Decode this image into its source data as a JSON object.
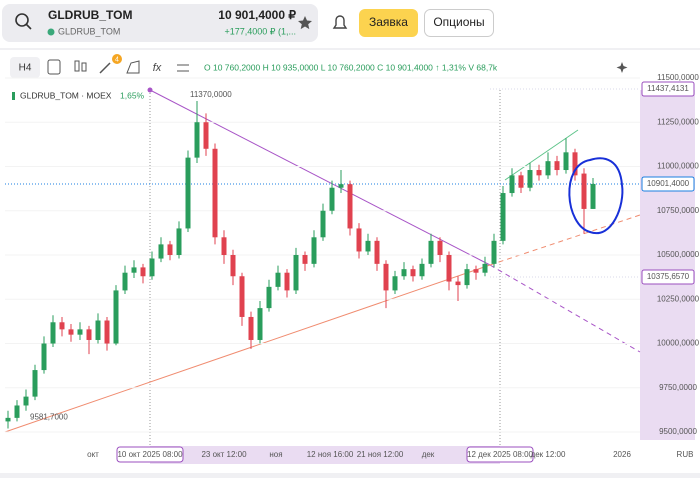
{
  "header": {
    "symbol": "GLDRUB_TOM",
    "sub_symbol": "GLDRUB_TOM",
    "price": "10 901,4000 ₽",
    "change": "+177,4000 ₽ (1,...",
    "order_button": "Заявка",
    "options_button": "Опционы"
  },
  "toolbar": {
    "interval": "H4",
    "badge": "4",
    "ohlc": "O 10 760,2000 H 10 935,0000 L 10 760,2000 C 10 901,4000 ↑ 1,31% V 68,7k"
  },
  "chart_data": {
    "type": "candlestick",
    "legend": "GLDRUB_TOM · MOEX",
    "change": "1,65%",
    "ohlc": [
      [
        9560,
        9620,
        9520,
        9580
      ],
      [
        9580,
        9680,
        9560,
        9650
      ],
      [
        9650,
        9740,
        9620,
        9700
      ],
      [
        9700,
        9880,
        9680,
        9850
      ],
      [
        9850,
        10040,
        9830,
        10000
      ],
      [
        10000,
        10160,
        9980,
        10120
      ],
      [
        10120,
        10150,
        10040,
        10080
      ],
      [
        10080,
        10110,
        10010,
        10050
      ],
      [
        10050,
        10120,
        10020,
        10080
      ],
      [
        10080,
        10100,
        9940,
        10020
      ],
      [
        10020,
        10170,
        10000,
        10130
      ],
      [
        10130,
        10150,
        9960,
        10000
      ],
      [
        10000,
        10330,
        9990,
        10300
      ],
      [
        10300,
        10440,
        10280,
        10400
      ],
      [
        10400,
        10470,
        10370,
        10430
      ],
      [
        10430,
        10450,
        10340,
        10380
      ],
      [
        10380,
        10520,
        10360,
        10480
      ],
      [
        10480,
        10600,
        10460,
        10560
      ],
      [
        10560,
        10580,
        10470,
        10500
      ],
      [
        10500,
        10690,
        10480,
        10650
      ],
      [
        10650,
        11090,
        10630,
        11050
      ],
      [
        11050,
        11370,
        11020,
        11250
      ],
      [
        11250,
        11300,
        11060,
        11100
      ],
      [
        11100,
        11130,
        10560,
        10600
      ],
      [
        10600,
        10640,
        10450,
        10500
      ],
      [
        10500,
        10530,
        10330,
        10380
      ],
      [
        10380,
        10400,
        10100,
        10150
      ],
      [
        10150,
        10180,
        9970,
        10020
      ],
      [
        10020,
        10240,
        10000,
        10200
      ],
      [
        10200,
        10360,
        10180,
        10320
      ],
      [
        10320,
        10440,
        10300,
        10400
      ],
      [
        10400,
        10420,
        10260,
        10300
      ],
      [
        10300,
        10540,
        10280,
        10500
      ],
      [
        10500,
        10520,
        10410,
        10450
      ],
      [
        10450,
        10640,
        10430,
        10600
      ],
      [
        10600,
        10790,
        10580,
        10750
      ],
      [
        10750,
        10920,
        10730,
        10880
      ],
      [
        10880,
        10980,
        10850,
        10900
      ],
      [
        10900,
        10920,
        10610,
        10650
      ],
      [
        10650,
        10680,
        10480,
        10520
      ],
      [
        10520,
        10620,
        10500,
        10580
      ],
      [
        10580,
        10600,
        10410,
        10450
      ],
      [
        10450,
        10470,
        10200,
        10300
      ],
      [
        10300,
        10410,
        10280,
        10380
      ],
      [
        10380,
        10460,
        10360,
        10420
      ],
      [
        10420,
        10440,
        10350,
        10380
      ],
      [
        10380,
        10480,
        10360,
        10450
      ],
      [
        10450,
        10620,
        10430,
        10580
      ],
      [
        10580,
        10600,
        10460,
        10500
      ],
      [
        10500,
        10520,
        10300,
        10350
      ],
      [
        10350,
        10380,
        10240,
        10330
      ],
      [
        10330,
        10450,
        10310,
        10420
      ],
      [
        10420,
        10440,
        10360,
        10400
      ],
      [
        10400,
        10490,
        10380,
        10450
      ],
      [
        10450,
        10620,
        10430,
        10580
      ],
      [
        10580,
        10890,
        10560,
        10850
      ],
      [
        10850,
        10990,
        10830,
        10950
      ],
      [
        10950,
        10970,
        10850,
        10880
      ],
      [
        10880,
        11020,
        10860,
        10980
      ],
      [
        10980,
        11010,
        10920,
        10950
      ],
      [
        10950,
        11080,
        10930,
        11030
      ],
      [
        11030,
        11060,
        10950,
        10980
      ],
      [
        10980,
        11160,
        10960,
        11080
      ],
      [
        11080,
        11100,
        10920,
        10950
      ],
      [
        10960,
        10990,
        10620,
        10760.2
      ],
      [
        10760.2,
        10935,
        10760.2,
        10901.4
      ]
    ],
    "ylim": [
      9455,
      11545
    ],
    "yticks": [
      {
        "value": 11500,
        "label": "11500,0000"
      },
      {
        "value": 11250,
        "label": "11250,0000"
      },
      {
        "value": 11000,
        "label": "11000,0000"
      },
      {
        "value": 10750,
        "label": "10750,0000"
      },
      {
        "value": 10500,
        "label": "10500,0000"
      },
      {
        "value": 10250,
        "label": "10250,0000"
      },
      {
        "value": 10000,
        "label": "10000,0000"
      },
      {
        "value": 9750,
        "label": "9750,0000"
      },
      {
        "value": 9500,
        "label": "9500,0000"
      }
    ],
    "x_labels": [
      "окт",
      "10 окт 2025 08:00",
      "23 окт 12:00",
      "ноя",
      "12 ноя 16:00",
      "21 ноя 12:00",
      "дек",
      "12 дек 2025 08:00",
      "дек 12:00",
      "2026"
    ],
    "currency": "RUB",
    "price_labels": [
      {
        "value": 11437.4131,
        "label": "11437,4131"
      },
      {
        "value": 10901.4,
        "label": "10901,4000"
      },
      {
        "value": 10375.657,
        "label": "10375,6570"
      }
    ],
    "annotations": [
      {
        "value": 11370,
        "label": "11370,0000"
      },
      {
        "value": 9581.7,
        "label": "9581,7000"
      }
    ]
  }
}
